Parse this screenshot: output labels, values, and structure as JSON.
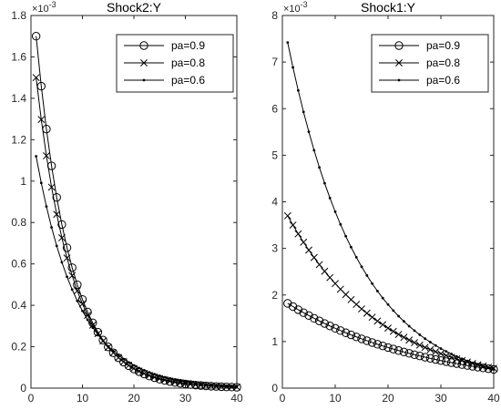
{
  "chart_data": [
    {
      "type": "line",
      "title": "Shock2:Y",
      "exponent_label": "×10",
      "exponent_power": "-3",
      "xlabel": "",
      "ylabel": "",
      "xlim": [
        0,
        40
      ],
      "ylim": [
        0,
        1.8
      ],
      "xticks": [
        0,
        10,
        20,
        30,
        40
      ],
      "yticks": [
        0,
        0.2,
        0.4,
        0.6,
        0.8,
        1,
        1.2,
        1.4,
        1.6,
        1.8
      ],
      "grid": false,
      "legend_position": "top-right",
      "series": [
        {
          "name": "pa=0.9",
          "marker": "circle",
          "x0": 1,
          "y0": 1.7,
          "decay": 0.858,
          "n": 40
        },
        {
          "name": "pa=0.8",
          "marker": "x",
          "x0": 1,
          "y0": 1.5,
          "decay": 0.865,
          "n": 40
        },
        {
          "name": "pa=0.6",
          "marker": "dot",
          "x0": 1,
          "y0": 1.12,
          "decay": 0.885,
          "n": 40
        }
      ]
    },
    {
      "type": "line",
      "title": "Shock1:Y",
      "exponent_label": "×10",
      "exponent_power": "-3",
      "xlabel": "",
      "ylabel": "",
      "xlim": [
        0,
        40
      ],
      "ylim": [
        0,
        8
      ],
      "xticks": [
        0,
        10,
        20,
        30,
        40
      ],
      "yticks": [
        0,
        1,
        2,
        3,
        4,
        5,
        6,
        7,
        8
      ],
      "grid": false,
      "legend_position": "top-right",
      "series": [
        {
          "name": "pa=0.9",
          "marker": "circle",
          "x0": 1,
          "y0": 1.82,
          "decay": 0.962,
          "n": 40
        },
        {
          "name": "pa=0.8",
          "marker": "x",
          "x0": 1,
          "y0": 3.7,
          "decay": 0.946,
          "n": 40
        },
        {
          "name": "pa=0.6",
          "marker": "dot",
          "x0": 1,
          "y0": 7.42,
          "decay": 0.928,
          "n": 40
        }
      ]
    }
  ]
}
